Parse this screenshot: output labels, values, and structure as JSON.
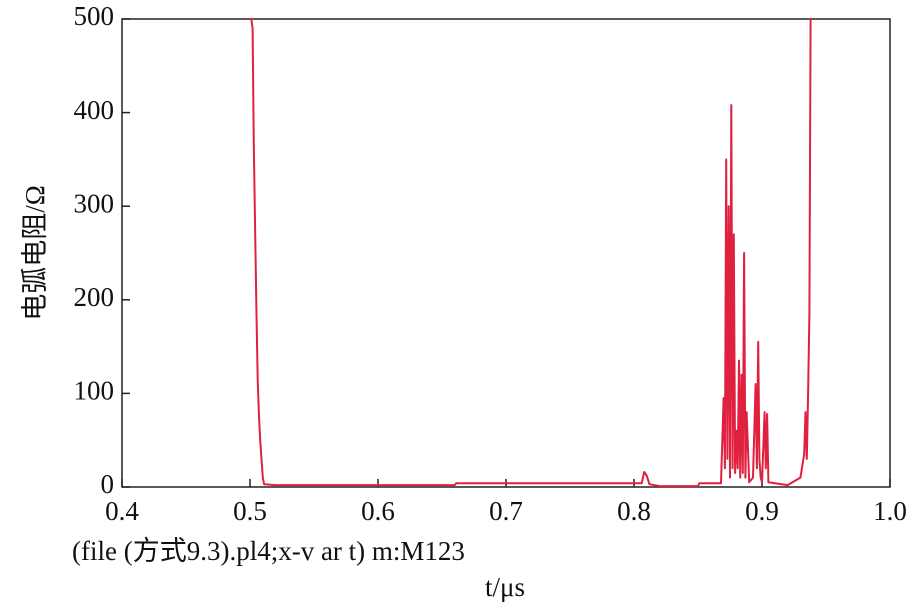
{
  "chart_data": {
    "type": "line",
    "xlabel": "t/μs",
    "ylabel": "电弧电阻/Ω",
    "annotation": "(file (方式9.3).pl4;x-v ar t) m:M123",
    "xlim": [
      0.4,
      1.0
    ],
    "xticks": [
      0.4,
      0.5,
      0.6,
      0.7,
      0.8,
      0.9,
      {
        "value": 1.0,
        "label": "1.0"
      }
    ],
    "ylim": [
      0,
      500
    ],
    "yticks": [
      0,
      100,
      200,
      300,
      400,
      500
    ],
    "grid": false,
    "series": [
      {
        "color": "#e0203f",
        "x": [
          0.499,
          0.501,
          0.502,
          0.503,
          0.505,
          0.506,
          0.507,
          0.508,
          0.509,
          0.51,
          0.511,
          0.52,
          0.66,
          0.661,
          0.8,
          0.806,
          0.808,
          0.81,
          0.812,
          0.82,
          0.85,
          0.851,
          0.868,
          0.87,
          0.871,
          0.872,
          0.873,
          0.874,
          0.875,
          0.876,
          0.877,
          0.878,
          0.879,
          0.88,
          0.881,
          0.882,
          0.883,
          0.884,
          0.885,
          0.886,
          0.887,
          0.888,
          0.89,
          0.893,
          0.895,
          0.896,
          0.897,
          0.898,
          0.899,
          0.9,
          0.902,
          0.903,
          0.904,
          0.905,
          0.92,
          0.93,
          0.933,
          0.934,
          0.935,
          0.936,
          0.937,
          0.938,
          0.939
        ],
        "values": [
          500,
          500,
          490,
          365,
          190,
          115,
          75,
          50,
          30,
          10,
          3,
          2,
          2,
          4,
          4,
          4,
          16,
          12,
          3,
          1,
          1,
          4,
          4,
          95,
          20,
          350,
          30,
          300,
          10,
          408,
          20,
          270,
          15,
          60,
          20,
          135,
          10,
          120,
          15,
          250,
          10,
          80,
          5,
          10,
          110,
          20,
          155,
          30,
          10,
          5,
          80,
          20,
          78,
          5,
          2,
          10,
          35,
          80,
          30,
          100,
          185,
          500,
          500
        ]
      }
    ]
  }
}
